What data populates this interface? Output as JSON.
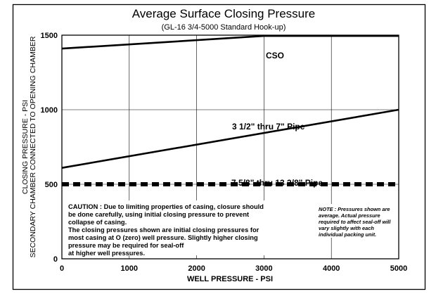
{
  "chart_data": {
    "type": "line",
    "title": "Average Surface Closing Pressure",
    "subtitle": "(GL-16 3/4-5000 Standard Hook-up)",
    "xlabel": "WELL PRESSURE - PSI",
    "ylabel_line1": "CLOSING PRESSURE - PSI",
    "ylabel_line2": "SECONDARY CHAMBER CONNECTED TO OPENING CHAMBER",
    "xlim": [
      0,
      5000
    ],
    "ylim": [
      0,
      1500
    ],
    "xticks": [
      0,
      1000,
      2000,
      3000,
      4000,
      5000
    ],
    "yticks": [
      0,
      500,
      1000,
      1500
    ],
    "xtick_labels": [
      "0",
      "1000",
      "2000",
      "3000",
      "4000",
      "5000"
    ],
    "ytick_labels": [
      "0",
      "500",
      "1000",
      "1500"
    ],
    "grid": true,
    "series": [
      {
        "name": "CSO",
        "style": "solid",
        "x": [
          0,
          3000,
          5000
        ],
        "y": [
          1410,
          1495,
          1495
        ]
      },
      {
        "name": "3 1/2\" thru 7\" Pipe",
        "style": "solid",
        "x": [
          0,
          5000
        ],
        "y": [
          610,
          1000
        ]
      },
      {
        "name": "7 5/8\" thru 13 3/8\" Pipe",
        "style": "dashed",
        "x": [
          0,
          5000
        ],
        "y": [
          500,
          500
        ]
      }
    ],
    "annotations": {
      "caution_lines": [
        "CAUTION :  Due to limiting properties of casing, closure should",
        "be done carefully, using initial closing pressure to prevent",
        "collapse of casing.",
        "The closing pressures shown are initial closing pressures for",
        "most casing at O (zero) well pressure. Slightly higher closing",
        "pressure may be required for seal-off",
        "at higher well pressures."
      ],
      "note_lines": [
        "NOTE : Pressures shown are",
        "average. Actual pressure",
        "required to affect seal-off will",
        "vary slightly with each",
        "individual packing unit."
      ]
    },
    "colors": {
      "line": "#000000",
      "grid": "#000000",
      "background": "#ffffff"
    }
  }
}
